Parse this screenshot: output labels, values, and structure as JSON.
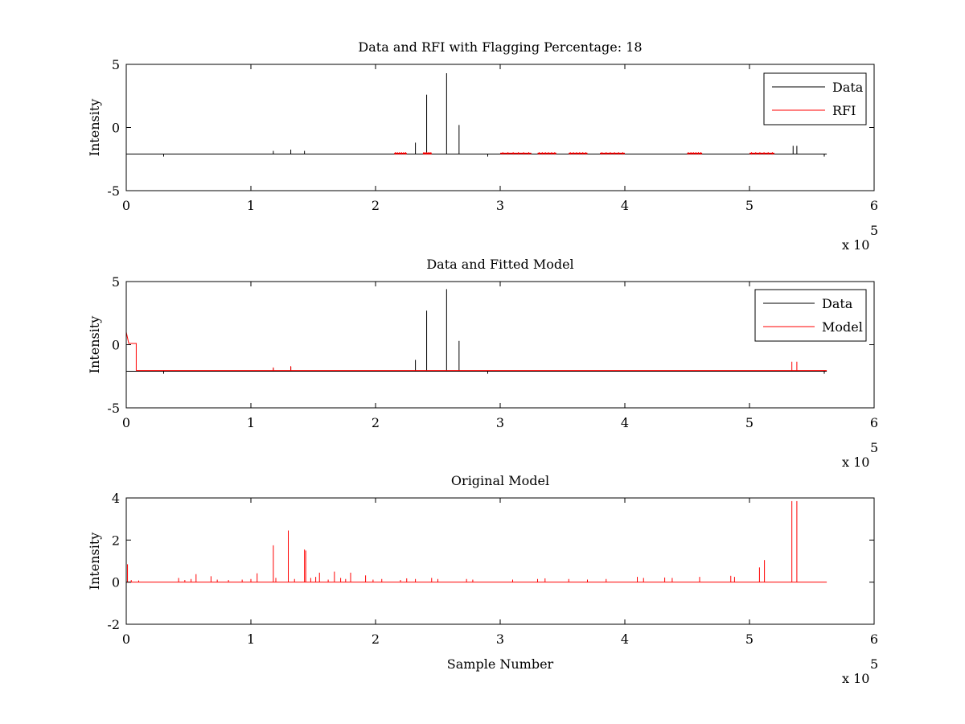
{
  "chart_data": [
    {
      "type": "line",
      "title": "Data and RFI with Flagging Percentage: 18",
      "xlabel": "",
      "ylabel": "Intensity",
      "xlim": [
        0,
        6
      ],
      "ylim": [
        -5,
        5
      ],
      "x_exponent_label": "x 10",
      "x_exponent": "5",
      "xticks": [
        "0",
        "1",
        "2",
        "3",
        "4",
        "5",
        "6"
      ],
      "yticks": [
        "-5",
        "0",
        "5"
      ],
      "grid": false,
      "legend_position": "top-right",
      "colors": {
        "Data": "#000000",
        "RFI": "#ff0000"
      },
      "series": [
        {
          "name": "Data",
          "color": "#000000",
          "baseline": -2.1,
          "x_end": 5.62,
          "spikes": [
            [
              0.3,
              -2.3
            ],
            [
              1.18,
              -1.85
            ],
            [
              1.32,
              -1.75
            ],
            [
              1.43,
              -1.85
            ],
            [
              2.32,
              -1.2
            ],
            [
              2.41,
              2.6
            ],
            [
              2.57,
              4.3
            ],
            [
              2.67,
              0.2
            ],
            [
              2.9,
              -2.3
            ],
            [
              5.35,
              -1.45
            ],
            [
              5.38,
              -1.45
            ],
            [
              5.6,
              -2.3
            ]
          ]
        },
        {
          "name": "RFI",
          "color": "#ff0000",
          "baseline": -2.05,
          "segments": [
            [
              2.15,
              2.25
            ],
            [
              2.38,
              2.45
            ],
            [
              3.0,
              3.25
            ],
            [
              3.3,
              3.45
            ],
            [
              3.55,
              3.7
            ],
            [
              3.8,
              4.0
            ],
            [
              4.5,
              4.62
            ],
            [
              5.0,
              5.2
            ]
          ]
        }
      ]
    },
    {
      "type": "line",
      "title": "Data and Fitted Model",
      "xlabel": "",
      "ylabel": "Intensity",
      "xlim": [
        0,
        6
      ],
      "ylim": [
        -5,
        5
      ],
      "x_exponent_label": "x 10",
      "x_exponent": "5",
      "xticks": [
        "0",
        "1",
        "2",
        "3",
        "4",
        "5",
        "6"
      ],
      "yticks": [
        "-5",
        "0",
        "5"
      ],
      "grid": false,
      "legend_position": "top-right",
      "colors": {
        "Data": "#000000",
        "Model": "#ff0000"
      },
      "series": [
        {
          "name": "Data",
          "color": "#000000",
          "baseline": -2.1,
          "x_end": 5.62,
          "spikes": [
            [
              0.3,
              -2.3
            ],
            [
              1.18,
              -1.85
            ],
            [
              1.32,
              -1.75
            ],
            [
              2.32,
              -1.2
            ],
            [
              2.41,
              2.7
            ],
            [
              2.57,
              4.4
            ],
            [
              2.67,
              0.3
            ],
            [
              2.9,
              -2.3
            ],
            [
              5.6,
              -2.3
            ]
          ]
        },
        {
          "name": "Model",
          "color": "#ff0000",
          "baseline": -2.05,
          "x_end": 5.62,
          "start_step": [
            [
              0.0,
              1.0
            ],
            [
              0.02,
              0.1
            ],
            [
              0.08,
              0.1
            ],
            [
              0.08,
              -2.05
            ]
          ],
          "spikes": [
            [
              1.18,
              -1.8
            ],
            [
              1.32,
              -1.7
            ],
            [
              5.34,
              -1.35
            ],
            [
              5.38,
              -1.35
            ]
          ]
        }
      ]
    },
    {
      "type": "line",
      "title": "Original Model",
      "xlabel": "Sample Number",
      "ylabel": "Intensity",
      "xlim": [
        0,
        6
      ],
      "ylim": [
        -2,
        4
      ],
      "x_exponent_label": "x 10",
      "x_exponent": "5",
      "xticks": [
        "0",
        "1",
        "2",
        "3",
        "4",
        "5",
        "6"
      ],
      "yticks": [
        "-2",
        "0",
        "2",
        "4"
      ],
      "grid": false,
      "colors": {
        "Model": "#ff0000"
      },
      "series": [
        {
          "color": "#ff0000",
          "baseline": 0,
          "x_end": 5.62,
          "spikes": [
            [
              0.01,
              0.85
            ],
            [
              0.04,
              0.1
            ],
            [
              0.1,
              0.08
            ],
            [
              0.42,
              0.2
            ],
            [
              0.47,
              0.1
            ],
            [
              0.52,
              0.15
            ],
            [
              0.56,
              0.38
            ],
            [
              0.68,
              0.28
            ],
            [
              0.73,
              0.12
            ],
            [
              0.82,
              0.1
            ],
            [
              0.93,
              0.12
            ],
            [
              1.0,
              0.15
            ],
            [
              1.05,
              0.42
            ],
            [
              1.18,
              1.75
            ],
            [
              1.2,
              0.2
            ],
            [
              1.3,
              2.45
            ],
            [
              1.35,
              0.15
            ],
            [
              1.43,
              1.55
            ],
            [
              1.44,
              1.5
            ],
            [
              1.48,
              0.2
            ],
            [
              1.52,
              0.25
            ],
            [
              1.55,
              0.45
            ],
            [
              1.62,
              0.12
            ],
            [
              1.67,
              0.5
            ],
            [
              1.72,
              0.2
            ],
            [
              1.76,
              0.15
            ],
            [
              1.8,
              0.45
            ],
            [
              1.92,
              0.32
            ],
            [
              1.98,
              0.12
            ],
            [
              2.05,
              0.15
            ],
            [
              2.2,
              0.1
            ],
            [
              2.25,
              0.18
            ],
            [
              2.32,
              0.15
            ],
            [
              2.45,
              0.2
            ],
            [
              2.5,
              0.15
            ],
            [
              2.73,
              0.15
            ],
            [
              2.78,
              0.12
            ],
            [
              3.1,
              0.12
            ],
            [
              3.3,
              0.15
            ],
            [
              3.36,
              0.18
            ],
            [
              3.55,
              0.15
            ],
            [
              3.7,
              0.12
            ],
            [
              3.85,
              0.15
            ],
            [
              4.1,
              0.25
            ],
            [
              4.15,
              0.2
            ],
            [
              4.32,
              0.22
            ],
            [
              4.38,
              0.2
            ],
            [
              4.6,
              0.25
            ],
            [
              4.85,
              0.3
            ],
            [
              4.88,
              0.25
            ],
            [
              5.08,
              0.7
            ],
            [
              5.12,
              1.05
            ],
            [
              5.34,
              3.85
            ],
            [
              5.38,
              3.85
            ]
          ]
        }
      ]
    }
  ]
}
